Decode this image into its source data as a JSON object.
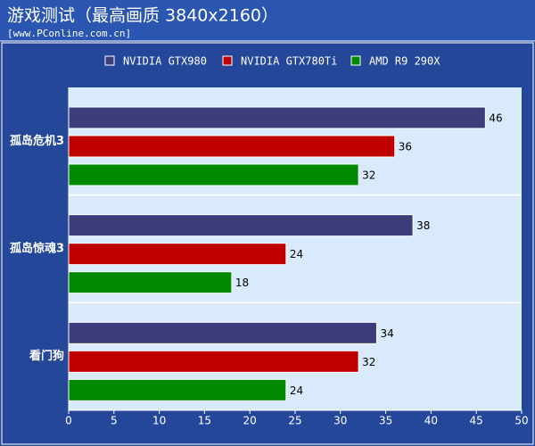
{
  "chart_data": {
    "type": "bar",
    "orientation": "horizontal",
    "title": "游戏测试（最高画质 3840x2160）",
    "subtitle": "[www.PConline.com.cn]",
    "categories": [
      "孤岛危机3",
      "孤岛惊魂3",
      "看门狗"
    ],
    "series": [
      {
        "name": "NVIDIA GTX980",
        "color": "#3d3d7c",
        "values": [
          46,
          38,
          34
        ]
      },
      {
        "name": "NVIDIA GTX780Ti",
        "color": "#c00000",
        "values": [
          36,
          24,
          32
        ]
      },
      {
        "name": "AMD R9 290X",
        "color": "#008a00",
        "values": [
          32,
          18,
          24
        ]
      }
    ],
    "xlim": [
      0,
      50
    ],
    "xticks": [
      0,
      5,
      10,
      15,
      20,
      25,
      30,
      35,
      40,
      45,
      50
    ]
  }
}
